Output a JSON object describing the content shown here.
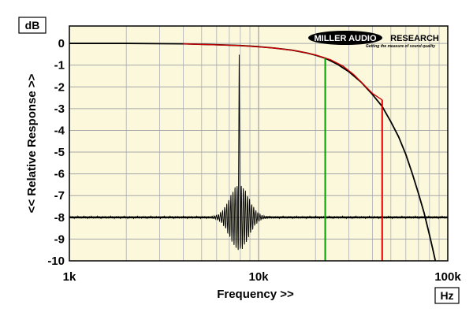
{
  "chart_data": {
    "type": "line",
    "unit_y": "dB",
    "unit_x": "Hz",
    "ylabel": "<< Relative Response >>",
    "xlabel": "Frequency >>",
    "xscale": "log",
    "xlim": [
      1000,
      100000
    ],
    "ylim": [
      -10,
      0.8
    ],
    "x_tick_values": [
      1000,
      10000,
      100000
    ],
    "x_tick_labels": [
      "1k",
      "10k",
      "100k"
    ],
    "y_tick_values": [
      0,
      -1,
      -2,
      -3,
      -4,
      -5,
      -6,
      -7,
      -8,
      -9,
      -10
    ],
    "y_tick_labels": [
      "0",
      "-1",
      "-2",
      "-3",
      "-4",
      "-5",
      "-6",
      "-7",
      "-8",
      "-9",
      "-10"
    ],
    "grid": true,
    "background_color": "#fbf8dc",
    "series": [
      {
        "color": "#000000",
        "x": [
          1000,
          2000,
          4000,
          6000,
          8000,
          10000,
          12000,
          15000,
          18000,
          20000,
          22500,
          26000,
          30000,
          35000,
          40000,
          45000,
          50000,
          55000,
          60000,
          65000,
          70000,
          75000,
          80000,
          83000,
          86000
        ],
        "y": [
          0,
          0,
          -0.02,
          -0.06,
          -0.1,
          -0.15,
          -0.21,
          -0.31,
          -0.44,
          -0.54,
          -0.68,
          -0.95,
          -1.3,
          -1.8,
          -2.35,
          -2.9,
          -3.6,
          -4.3,
          -5.1,
          -6.0,
          -6.9,
          -7.8,
          -8.8,
          -9.4,
          -10
        ]
      },
      {
        "color": "#cc0000",
        "x": [
          4000,
          8000,
          12000,
          16000,
          20000,
          24000,
          28000,
          32000,
          36000,
          40000,
          45000
        ],
        "y": [
          -0.02,
          -0.1,
          -0.21,
          -0.35,
          -0.53,
          -0.75,
          -1.05,
          -1.45,
          -1.9,
          -2.3,
          -2.6
        ]
      },
      {
        "color": "#000000",
        "type": "impulse",
        "center_x": 7900,
        "baseline_y": -8.0,
        "peak_y": -0.3,
        "min_y": -9.5,
        "x_range": [
          1000,
          100000
        ]
      }
    ],
    "markers": [
      {
        "color": "#00a000",
        "x": 22500,
        "y_top": -0.68,
        "y_bottom": -10
      },
      {
        "color": "#e00000",
        "x": 45000,
        "y_top": -2.6,
        "y_bottom": -10
      }
    ]
  },
  "logo": {
    "word1": "MILLER AUDIO",
    "word2": "RESEARCH",
    "tagline": "Getting the measure of sound quality"
  }
}
